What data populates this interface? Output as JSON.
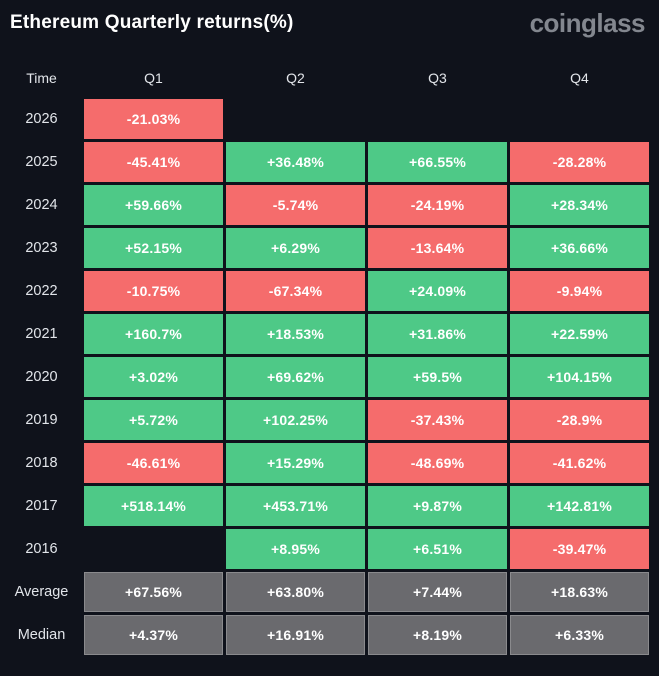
{
  "header": {
    "title": "Ethereum Quarterly returns(%)",
    "brand": "coinglass"
  },
  "table": {
    "columns": [
      "Time",
      "Q1",
      "Q2",
      "Q3",
      "Q4"
    ],
    "rows": [
      {
        "label": "2026",
        "kind": "year",
        "cells": [
          "-21.03%",
          "",
          "",
          ""
        ]
      },
      {
        "label": "2025",
        "kind": "year",
        "cells": [
          "-45.41%",
          "+36.48%",
          "+66.55%",
          "-28.28%"
        ]
      },
      {
        "label": "2024",
        "kind": "year",
        "cells": [
          "+59.66%",
          "-5.74%",
          "-24.19%",
          "+28.34%"
        ]
      },
      {
        "label": "2023",
        "kind": "year",
        "cells": [
          "+52.15%",
          "+6.29%",
          "-13.64%",
          "+36.66%"
        ]
      },
      {
        "label": "2022",
        "kind": "year",
        "cells": [
          "-10.75%",
          "-67.34%",
          "+24.09%",
          "-9.94%"
        ]
      },
      {
        "label": "2021",
        "kind": "year",
        "cells": [
          "+160.7%",
          "+18.53%",
          "+31.86%",
          "+22.59%"
        ]
      },
      {
        "label": "2020",
        "kind": "year",
        "cells": [
          "+3.02%",
          "+69.62%",
          "+59.5%",
          "+104.15%"
        ]
      },
      {
        "label": "2019",
        "kind": "year",
        "cells": [
          "+5.72%",
          "+102.25%",
          "-37.43%",
          "-28.9%"
        ]
      },
      {
        "label": "2018",
        "kind": "year",
        "cells": [
          "-46.61%",
          "+15.29%",
          "-48.69%",
          "-41.62%"
        ]
      },
      {
        "label": "2017",
        "kind": "year",
        "cells": [
          "+518.14%",
          "+453.71%",
          "+9.87%",
          "+142.81%"
        ]
      },
      {
        "label": "2016",
        "kind": "year",
        "cells": [
          "",
          "+8.95%",
          "+6.51%",
          "-39.47%"
        ]
      },
      {
        "label": "Average",
        "kind": "summary",
        "cells": [
          "+67.56%",
          "+63.80%",
          "+7.44%",
          "+18.63%"
        ]
      },
      {
        "label": "Median",
        "kind": "summary",
        "cells": [
          "+4.37%",
          "+16.91%",
          "+8.19%",
          "+6.33%"
        ]
      }
    ]
  },
  "colors": {
    "background": "#0f121b",
    "positive": "#4ec987",
    "negative": "#f56c6c",
    "summary": "#6a6a6e",
    "text": "#ffffff",
    "muted": "#e2e5ea",
    "brand": "#83878f"
  },
  "chart_data": {
    "type": "heatmap",
    "title": "Ethereum Quarterly returns(%)",
    "source_brand": "coinglass",
    "x_labels": [
      "Q1",
      "Q2",
      "Q3",
      "Q4"
    ],
    "y_labels": [
      "2026",
      "2025",
      "2024",
      "2023",
      "2022",
      "2021",
      "2020",
      "2019",
      "2018",
      "2017",
      "2016",
      "Average",
      "Median"
    ],
    "values_percent": [
      [
        -21.03,
        null,
        null,
        null
      ],
      [
        -45.41,
        36.48,
        66.55,
        -28.28
      ],
      [
        59.66,
        -5.74,
        -24.19,
        28.34
      ],
      [
        52.15,
        6.29,
        -13.64,
        36.66
      ],
      [
        -10.75,
        -67.34,
        24.09,
        -9.94
      ],
      [
        160.7,
        18.53,
        31.86,
        22.59
      ],
      [
        3.02,
        69.62,
        59.5,
        104.15
      ],
      [
        5.72,
        102.25,
        -37.43,
        -28.9
      ],
      [
        -46.61,
        15.29,
        -48.69,
        -41.62
      ],
      [
        518.14,
        453.71,
        9.87,
        142.81
      ],
      [
        null,
        8.95,
        6.51,
        -39.47
      ],
      [
        67.56,
        63.8,
        7.44,
        18.63
      ],
      [
        4.37,
        16.91,
        8.19,
        6.33
      ]
    ],
    "color_rule": "green = positive return, red = negative return, gray = Average/Median summary rows, empty = no data",
    "legend_position": "none",
    "grid": false
  }
}
